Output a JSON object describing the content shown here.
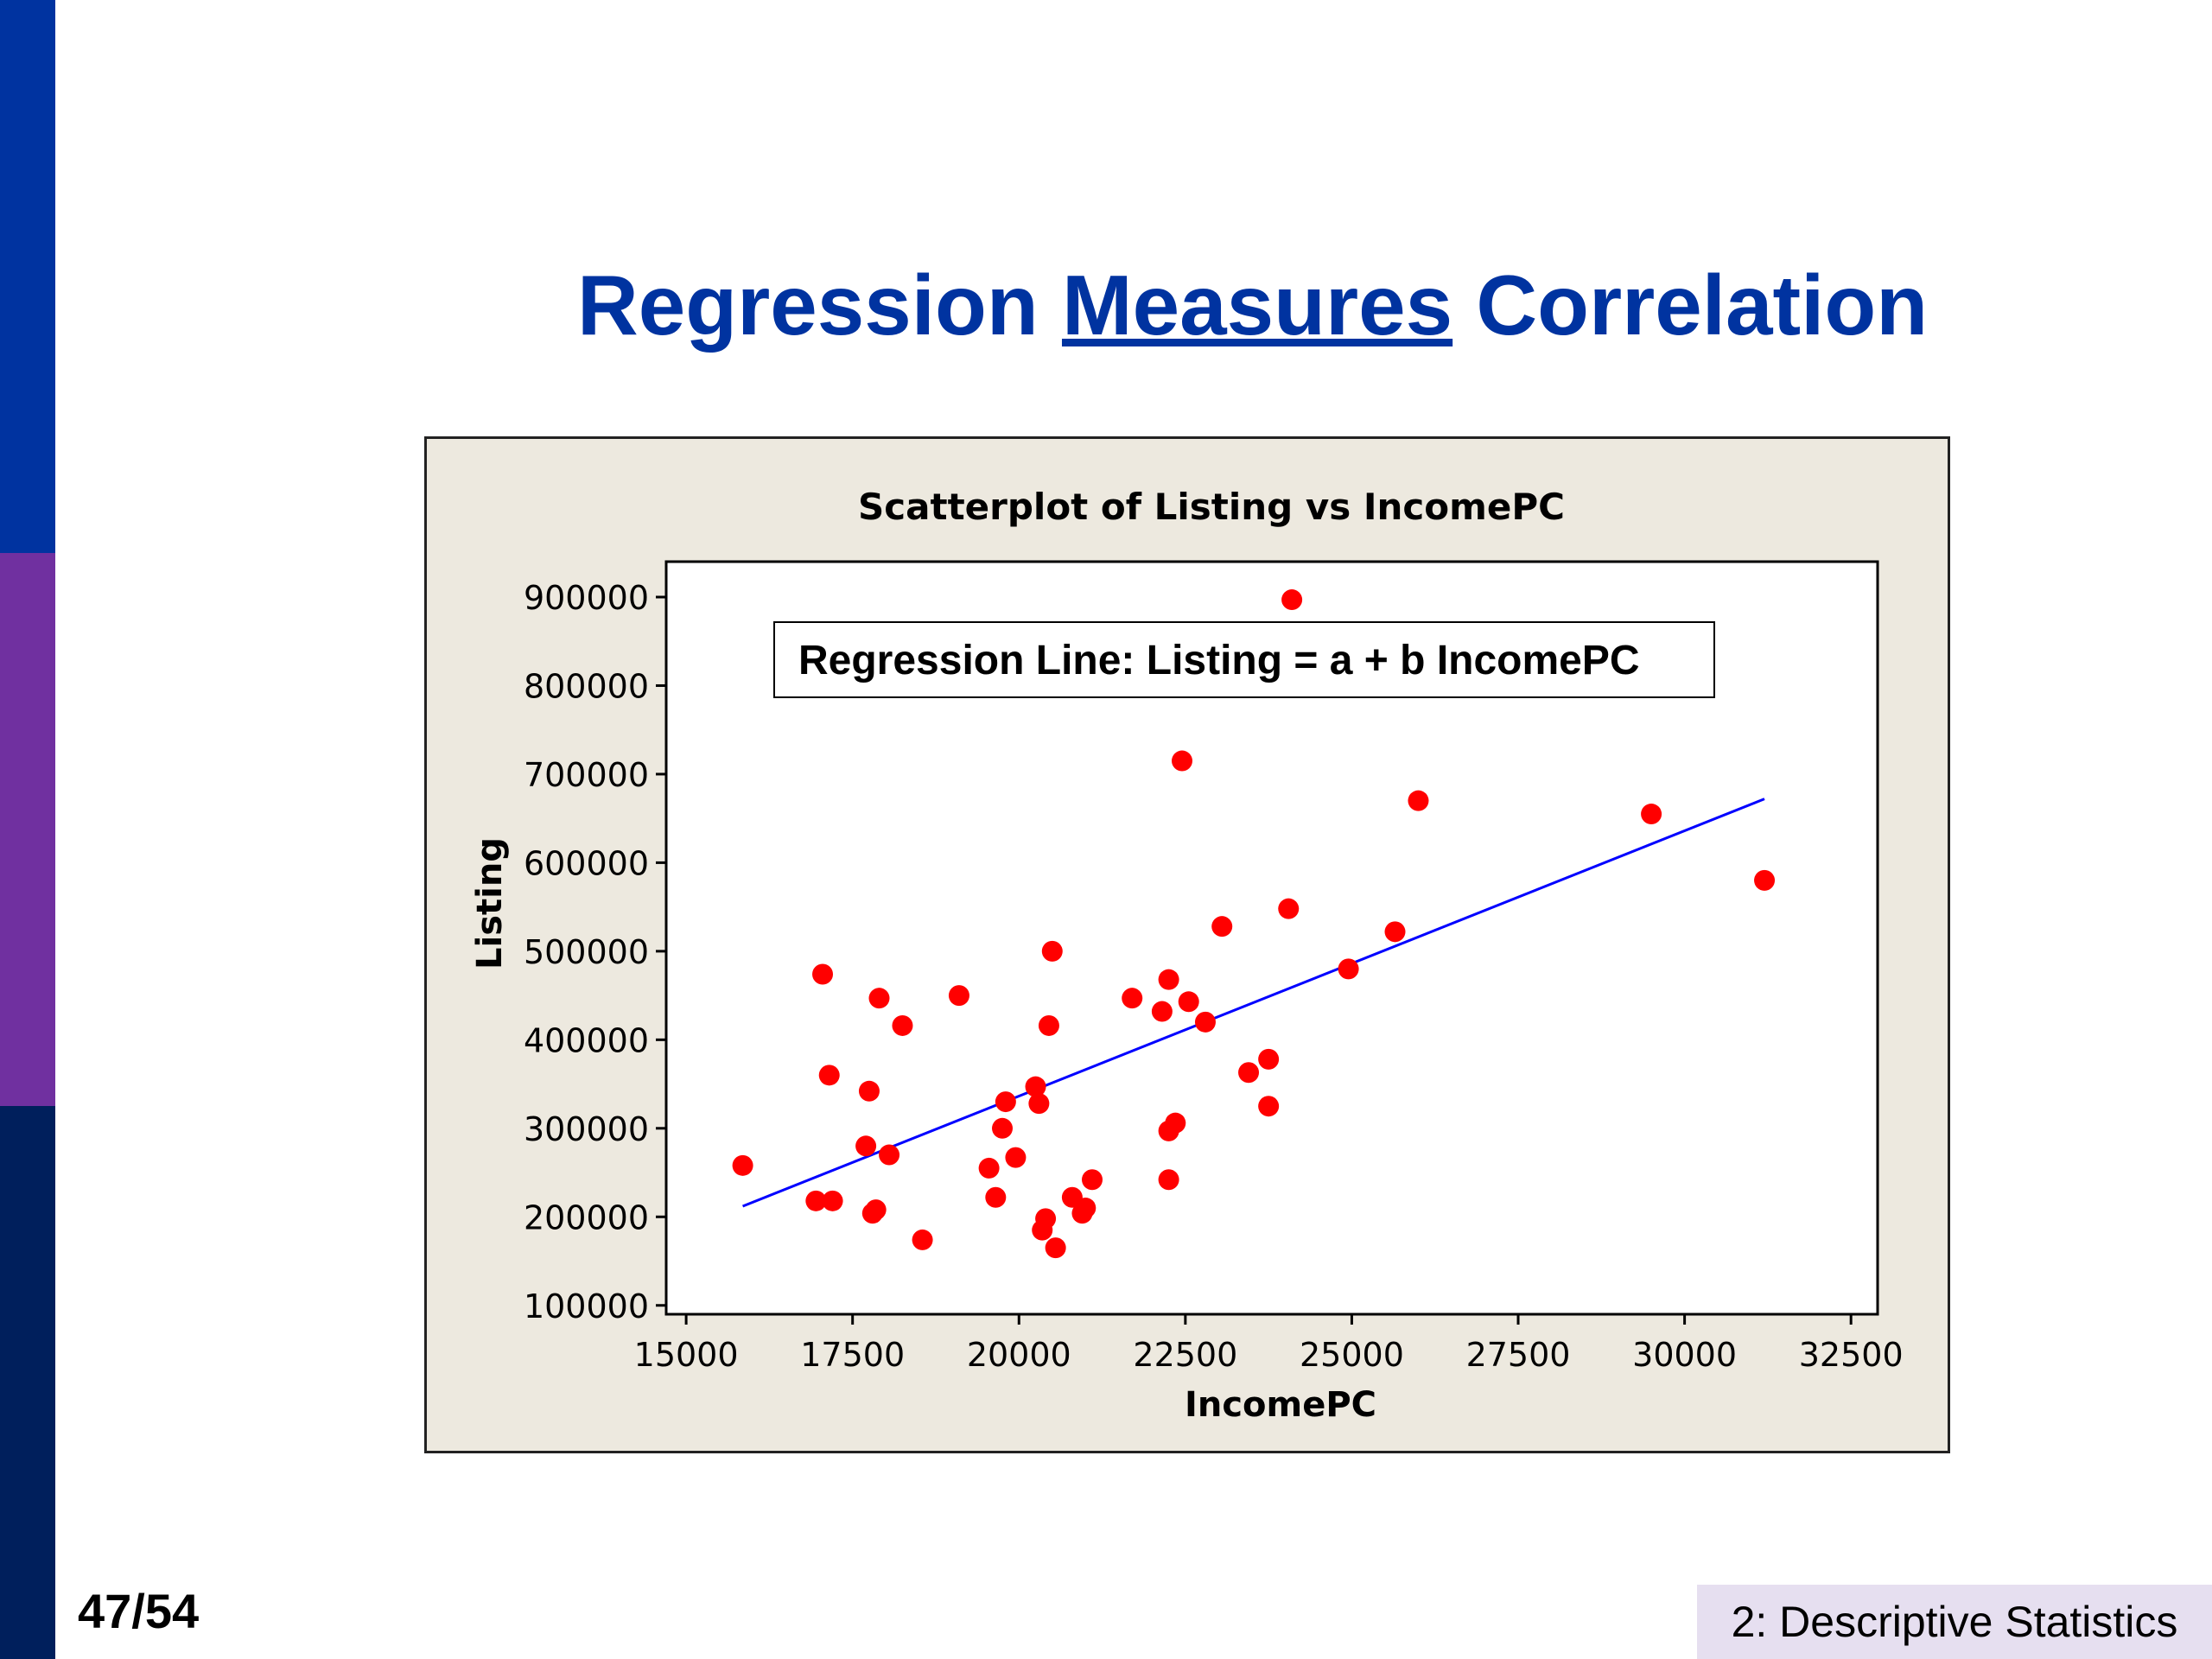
{
  "slide": {
    "title_part1": "Regression",
    "title_underlined": "Measures",
    "title_part2": "Correlation",
    "page_number": "47/54",
    "section": "2: Descriptive Statistics"
  },
  "chart_data": {
    "type": "scatter",
    "title": "Scatterplot of Listing vs IncomePC",
    "xlabel": "IncomePC",
    "ylabel": "Listing",
    "annotation": "Regression Line: Listing = a + b IncomePC",
    "xlim": [
      14700,
      32900
    ],
    "ylim": [
      90000,
      940000
    ],
    "x_ticks": [
      15000,
      17500,
      20000,
      22500,
      25000,
      27500,
      30000,
      32500
    ],
    "y_ticks": [
      100000,
      200000,
      300000,
      400000,
      500000,
      600000,
      700000,
      800000,
      900000
    ],
    "grid": false,
    "point_color": "#ff0000",
    "line_color": "#0000ff",
    "points": [
      [
        15850,
        258000
      ],
      [
        16950,
        218000
      ],
      [
        17200,
        218000
      ],
      [
        17050,
        474000
      ],
      [
        17150,
        360000
      ],
      [
        17700,
        280000
      ],
      [
        17750,
        342000
      ],
      [
        17800,
        204000
      ],
      [
        17850,
        208000
      ],
      [
        17900,
        447000
      ],
      [
        18050,
        270000
      ],
      [
        18250,
        416000
      ],
      [
        18550,
        174000
      ],
      [
        19100,
        450000
      ],
      [
        19550,
        255000
      ],
      [
        19650,
        222000
      ],
      [
        19750,
        300000
      ],
      [
        19800,
        330000
      ],
      [
        19950,
        267000
      ],
      [
        20250,
        347000
      ],
      [
        20300,
        328000
      ],
      [
        20350,
        185000
      ],
      [
        20400,
        198000
      ],
      [
        20450,
        416000
      ],
      [
        20500,
        500000
      ],
      [
        20550,
        165000
      ],
      [
        20800,
        222000
      ],
      [
        20950,
        204000
      ],
      [
        21000,
        210000
      ],
      [
        21100,
        242000
      ],
      [
        21700,
        447000
      ],
      [
        22150,
        432000
      ],
      [
        22250,
        468000
      ],
      [
        22250,
        297000
      ],
      [
        22250,
        242000
      ],
      [
        22350,
        306000
      ],
      [
        22450,
        715000
      ],
      [
        22550,
        443000
      ],
      [
        22800,
        420000
      ],
      [
        23050,
        528000
      ],
      [
        23450,
        363000
      ],
      [
        23750,
        378000
      ],
      [
        23750,
        325000
      ],
      [
        24050,
        548000
      ],
      [
        24100,
        897000
      ],
      [
        24950,
        480000
      ],
      [
        25650,
        522000
      ],
      [
        26000,
        670000
      ],
      [
        29500,
        655000
      ],
      [
        31200,
        580000
      ]
    ],
    "regression_line": {
      "x": [
        15850,
        31200
      ],
      "y": [
        212000,
        672000
      ]
    }
  }
}
